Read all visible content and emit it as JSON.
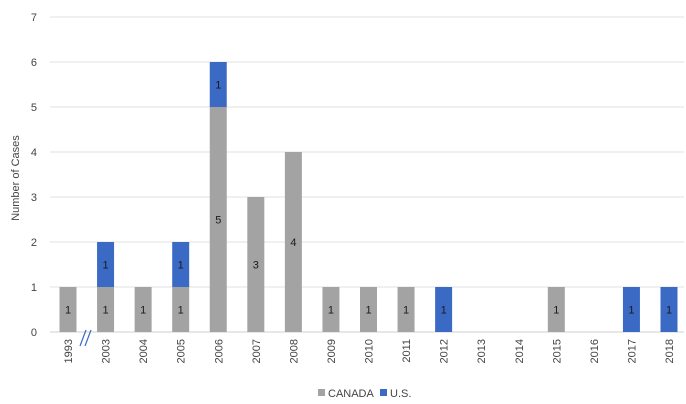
{
  "chart_data": {
    "type": "bar",
    "stacked": true,
    "categories": [
      "1993",
      "2003",
      "2004",
      "2005",
      "2006",
      "2007",
      "2008",
      "2009",
      "2010",
      "2011",
      "2012",
      "2013",
      "2014",
      "2015",
      "2016",
      "2017",
      "2018"
    ],
    "series": [
      {
        "name": "CANADA",
        "color": "#a3a3a3",
        "values": [
          1,
          1,
          1,
          1,
          5,
          3,
          4,
          1,
          1,
          1,
          0,
          0,
          0,
          1,
          0,
          0,
          0
        ]
      },
      {
        "name": "U.S.",
        "color": "#3b6ac4",
        "values": [
          0,
          1,
          0,
          1,
          1,
          0,
          0,
          0,
          0,
          0,
          1,
          0,
          0,
          0,
          0,
          1,
          1
        ]
      }
    ],
    "ylabel": "Number of Cases",
    "ylim": [
      0,
      7
    ],
    "yticks": [
      "0",
      "1",
      "2",
      "3",
      "4",
      "5",
      "6",
      "7"
    ],
    "grid": true,
    "axis_break_after": "1993",
    "legend": "bottom-center"
  }
}
